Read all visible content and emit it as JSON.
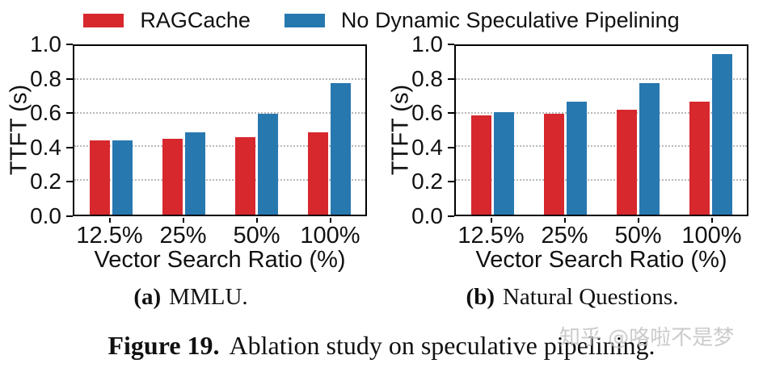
{
  "legend": {
    "items": [
      {
        "label": "RAGCache",
        "color": "#d7282e"
      },
      {
        "label": "No Dynamic Speculative Pipelining",
        "color": "#2878b0"
      }
    ]
  },
  "chart_data": [
    {
      "type": "bar",
      "subplot_label": "(a)",
      "title": "MMLU",
      "categories": [
        "12.5%",
        "25%",
        "50%",
        "100%"
      ],
      "series": [
        {
          "name": "RAGCache",
          "color": "#d7282e",
          "values": [
            0.44,
            0.45,
            0.46,
            0.49
          ]
        },
        {
          "name": "No Dynamic Speculative Pipelining",
          "color": "#2878b0",
          "values": [
            0.44,
            0.49,
            0.6,
            0.78
          ]
        }
      ],
      "xlabel": "Vector Search Ratio (%)",
      "ylabel": "TTFT (s)",
      "ylim": [
        0,
        1.0
      ],
      "yticks": [
        "0.0",
        "0.2",
        "0.4",
        "0.6",
        "0.8",
        "1.0"
      ],
      "grid": "horizontal-dotted",
      "legend_position": "shared-top"
    },
    {
      "type": "bar",
      "subplot_label": "(b)",
      "title": "Natural Questions",
      "categories": [
        "12.5%",
        "25%",
        "50%",
        "100%"
      ],
      "series": [
        {
          "name": "RAGCache",
          "color": "#d7282e",
          "values": [
            0.59,
            0.6,
            0.62,
            0.67
          ]
        },
        {
          "name": "No Dynamic Speculative Pipelining",
          "color": "#2878b0",
          "values": [
            0.61,
            0.67,
            0.78,
            0.95
          ]
        }
      ],
      "xlabel": "Vector Search Ratio (%)",
      "ylabel": "TTFT (s)",
      "ylim": [
        0,
        1.0
      ],
      "yticks": [
        "0.0",
        "0.2",
        "0.4",
        "0.6",
        "0.8",
        "1.0"
      ],
      "grid": "horizontal-dotted",
      "legend_position": "shared-top"
    }
  ],
  "captions": {
    "a_label": "(a)",
    "a_title": "MMLU.",
    "b_label": "(b)",
    "b_title": "Natural Questions.",
    "figure_label": "Figure 19.",
    "figure_text": "Ablation study on speculative pipelining."
  },
  "watermark": "知乎 @咯啦不是梦"
}
